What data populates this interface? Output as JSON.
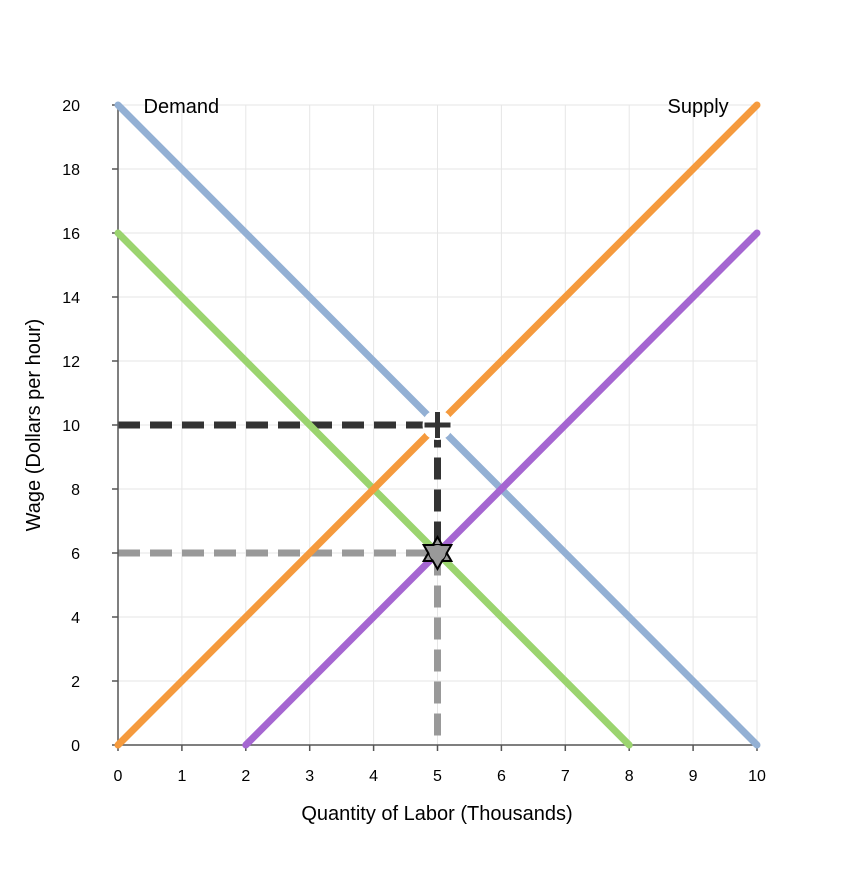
{
  "chart_data": {
    "type": "line",
    "xlabel": "Quantity of Labor (Thousands)",
    "ylabel": "Wage (Dollars per hour)",
    "xlim": [
      0,
      10
    ],
    "ylim": [
      0,
      20
    ],
    "x_ticks": [
      0,
      1,
      2,
      3,
      4,
      5,
      6,
      7,
      8,
      9,
      10
    ],
    "y_ticks": [
      0,
      2,
      4,
      6,
      8,
      10,
      12,
      14,
      16,
      18,
      20
    ],
    "grid": true,
    "series": [
      {
        "color": "#93b0d4",
        "x": [
          0,
          10
        ],
        "y": [
          20,
          0
        ]
      },
      {
        "color": "#9bd46f",
        "x": [
          0,
          8
        ],
        "y": [
          16,
          0
        ]
      },
      {
        "color": "#f59a3d",
        "x": [
          0,
          10
        ],
        "y": [
          0,
          20
        ]
      },
      {
        "color": "#a566d1",
        "x": [
          2,
          10
        ],
        "y": [
          0,
          16
        ]
      }
    ],
    "reference_lines": [
      {
        "color": "#333333",
        "points": [
          [
            0,
            10
          ],
          [
            5,
            10
          ],
          [
            5,
            6
          ]
        ]
      },
      {
        "color": "#999999",
        "points": [
          [
            0,
            6
          ],
          [
            5,
            6
          ],
          [
            5,
            0
          ]
        ]
      }
    ],
    "markers": [
      {
        "shape": "cross",
        "x": 5,
        "y": 10,
        "color": "#333333"
      },
      {
        "shape": "star",
        "x": 5,
        "y": 6,
        "color": "#999999"
      }
    ],
    "annotations": [
      {
        "text": "Demand",
        "x": 0.4,
        "y": 20
      },
      {
        "text": "Supply",
        "x": 8.6,
        "y": 20
      }
    ]
  }
}
